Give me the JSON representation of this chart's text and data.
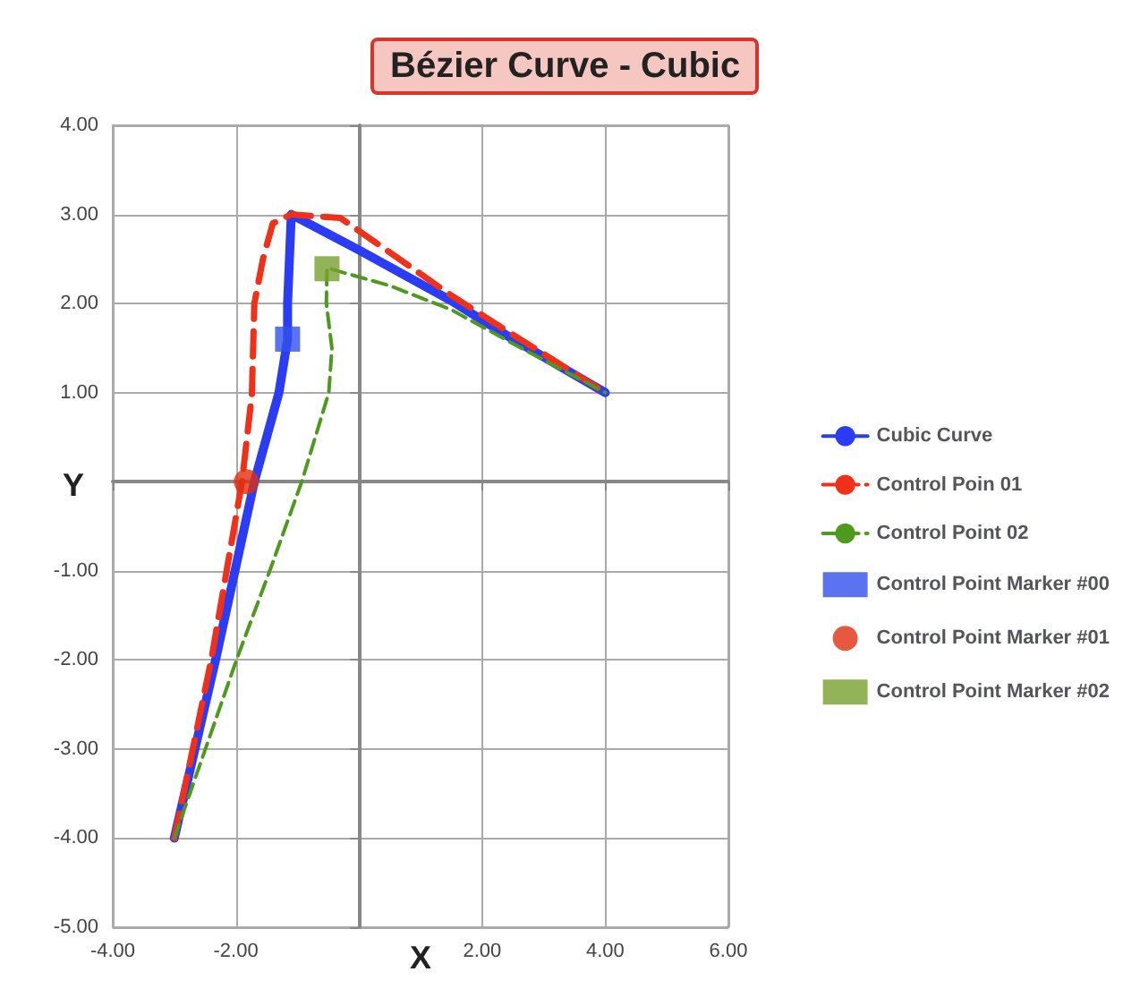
{
  "chart_data": {
    "type": "line",
    "title": "Bézier Curve - Cubic",
    "xlabel": "X",
    "ylabel": "Y",
    "xlim": [
      -4,
      6
    ],
    "ylim": [
      -5,
      4
    ],
    "xticks": [
      {
        "value": -4,
        "label": "-4.00"
      },
      {
        "value": -2,
        "label": "-2.00"
      },
      {
        "value": 0,
        "label": null
      },
      {
        "value": 2,
        "label": "2.00"
      },
      {
        "value": 4,
        "label": "4.00"
      },
      {
        "value": 6,
        "label": "6.00"
      }
    ],
    "yticks": [
      {
        "value": -5,
        "label": "-5.00"
      },
      {
        "value": -4,
        "label": "-4.00"
      },
      {
        "value": -3,
        "label": "-3.00"
      },
      {
        "value": -2,
        "label": "-2.00"
      },
      {
        "value": -1,
        "label": "-1.00"
      },
      {
        "value": 0,
        "label": null
      },
      {
        "value": 1,
        "label": "1.00"
      },
      {
        "value": 2,
        "label": "2.00"
      },
      {
        "value": 3,
        "label": "3.00"
      },
      {
        "value": 4,
        "label": "4.00"
      }
    ],
    "grid": true,
    "legend": "right",
    "marker": "none",
    "series": [
      {
        "name": "Cubic Curve",
        "color": "#2b3cf5",
        "line_style": "solid",
        "x": [
          -3,
          -2.33,
          -1.7,
          -1.3,
          -1.16,
          -1.16,
          -1.1,
          0,
          1.5,
          2.5,
          4
        ],
        "values": [
          -4,
          -2,
          0,
          1,
          1.6,
          2.0,
          3.0,
          2.6,
          2.03,
          1.6,
          1
        ]
      },
      {
        "name": "Control Poin 01",
        "color": "#f03018",
        "line_style": "dashed",
        "x": [
          -3,
          -2.4,
          -1.9,
          -1.74,
          -1.7,
          -1.56,
          -1.4,
          -1.1,
          -0.3,
          1.5,
          2.5,
          4
        ],
        "values": [
          -4,
          -2,
          0,
          0.98,
          2,
          2.5,
          2.9,
          3.0,
          2.96,
          2.09,
          1.65,
          1
        ]
      },
      {
        "name": "Control Point 02",
        "color": "#4e9a1e",
        "line_style": "dashed",
        "x": [
          -3,
          -1.99,
          -1.45,
          -0.93,
          -0.49,
          -0.44,
          -0.53,
          -0.52,
          0.5,
          1.5,
          2.5,
          4
        ],
        "values": [
          -4,
          -2,
          -1,
          0,
          1,
          1.5,
          2,
          2.4,
          2.2,
          1.93,
          1.55,
          1
        ]
      },
      {
        "name": "Control Point Marker #00",
        "type": "scatter",
        "marker": "square",
        "color": "#3250ec",
        "x": [
          -1.16
        ],
        "values": [
          1.6
        ]
      },
      {
        "name": "Control Point Marker #01",
        "type": "scatter",
        "marker": "circle",
        "color": "#e0300e",
        "x": [
          -1.83
        ],
        "values": [
          0
        ]
      },
      {
        "name": "Control Point Marker #02",
        "type": "scatter",
        "marker": "square",
        "color": "#78a030",
        "x": [
          -0.52
        ],
        "values": [
          2.39
        ]
      }
    ]
  }
}
